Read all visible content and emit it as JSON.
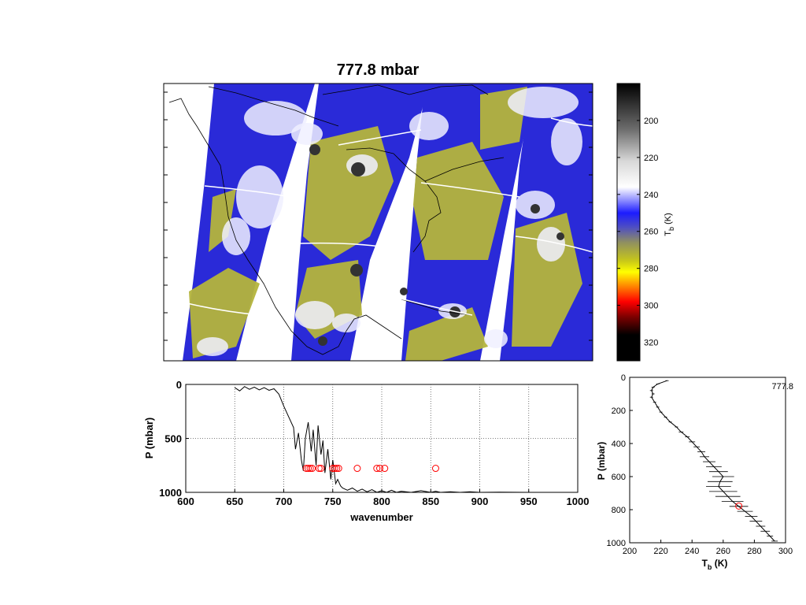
{
  "figure": {
    "title": "777.8 mbar"
  },
  "colorbar": {
    "label": "T",
    "label_sub": "b",
    "label_unit": " (K)",
    "ticks": [
      200,
      220,
      240,
      260,
      280,
      300,
      320
    ],
    "range": [
      180,
      330
    ],
    "stops": [
      {
        "v": 180,
        "c": "#000000"
      },
      {
        "v": 205,
        "c": "#6e6e6e"
      },
      {
        "v": 222,
        "c": "#d8d8d8"
      },
      {
        "v": 236,
        "c": "#ffffff"
      },
      {
        "v": 244,
        "c": "#8080ff"
      },
      {
        "v": 250,
        "c": "#1c1cff"
      },
      {
        "v": 258,
        "c": "#5050c0"
      },
      {
        "v": 266,
        "c": "#909060"
      },
      {
        "v": 276,
        "c": "#c8c818"
      },
      {
        "v": 282,
        "c": "#ffff00"
      },
      {
        "v": 290,
        "c": "#ff8000"
      },
      {
        "v": 298,
        "c": "#ff0000"
      },
      {
        "v": 306,
        "c": "#800000"
      },
      {
        "v": 316,
        "c": "#000000"
      },
      {
        "v": 330,
        "c": "#000000"
      }
    ]
  },
  "map": {
    "background": "#ffffff",
    "swath_color": "#b4b43c",
    "cold_color": "#2a2ad8",
    "cloud_color": "#f0f0ff",
    "coast_color": "#000000"
  },
  "chart_data": [
    {
      "type": "line",
      "id": "weighting-spectrum",
      "xlabel": "wavenumber",
      "ylabel": "P (mbar)",
      "xlim": [
        600,
        1000
      ],
      "ylim": [
        1000,
        0
      ],
      "xticks": [
        600,
        650,
        700,
        750,
        800,
        850,
        900,
        950,
        1000
      ],
      "yticks": [
        0,
        500,
        1000
      ],
      "grid": true,
      "series": [
        {
          "style": "black-line",
          "x": [
            650,
            655,
            660,
            665,
            670,
            675,
            680,
            685,
            690,
            695,
            700,
            705,
            710,
            712,
            715,
            718,
            720,
            722,
            725,
            728,
            730,
            733,
            735,
            738,
            740,
            742,
            745,
            748,
            750,
            753,
            755,
            758,
            760,
            765,
            770,
            775,
            780,
            785,
            790,
            795,
            800,
            805,
            810,
            815,
            820,
            830,
            840,
            850,
            855,
            860,
            870,
            880,
            890,
            900,
            920,
            950,
            1000
          ],
          "y": [
            30,
            60,
            20,
            45,
            25,
            50,
            30,
            55,
            40,
            90,
            200,
            300,
            400,
            600,
            450,
            700,
            800,
            500,
            350,
            620,
            420,
            750,
            380,
            650,
            520,
            820,
            600,
            880,
            700,
            920,
            880,
            940,
            960,
            980,
            960,
            990,
            970,
            995,
            975,
            1000,
            985,
            1000,
            980,
            1000,
            990,
            1000,
            985,
            1000,
            990,
            1000,
            995,
            1000,
            995,
            1000,
            998,
            1000,
            1000
          ]
        }
      ],
      "markers": {
        "color": "#ff0000",
        "shape": "open-circle",
        "y": 777.8,
        "x": [
          723,
          725,
          727,
          729,
          736,
          738,
          750,
          752,
          754,
          756,
          775,
          795,
          798,
          803,
          855
        ]
      }
    },
    {
      "type": "line",
      "id": "temperature-profile",
      "xlabel": "T",
      "xlabel_sub": "b",
      "xlabel_unit": " (K)",
      "ylabel": "P (mbar)",
      "xlim": [
        200,
        300
      ],
      "ylim": [
        1000,
        0
      ],
      "xticks": [
        200,
        220,
        240,
        260,
        280,
        300
      ],
      "yticks": [
        0,
        200,
        400,
        600,
        800,
        1000
      ],
      "grid": false,
      "annotation": "777.8",
      "series": [
        {
          "style": "black-line-errorbars",
          "p": [
            20,
            40,
            60,
            80,
            100,
            120,
            150,
            180,
            210,
            240,
            270,
            300,
            330,
            360,
            390,
            420,
            450,
            480,
            510,
            540,
            570,
            600,
            630,
            660,
            690,
            720,
            750,
            780,
            810,
            840,
            870,
            900,
            930,
            960,
            990
          ],
          "t": [
            224,
            218,
            215,
            214,
            215,
            214,
            216,
            218,
            220,
            223,
            226,
            230,
            233,
            237,
            240,
            243,
            246,
            248,
            251,
            254,
            257,
            260,
            258,
            257,
            260,
            263,
            266,
            270,
            274,
            278,
            281,
            284,
            287,
            290,
            293
          ],
          "err": [
            1,
            1,
            1,
            1,
            1,
            1,
            1,
            1,
            1,
            1,
            1,
            1,
            1.5,
            1.5,
            2,
            2,
            2.5,
            3,
            4,
            5,
            6,
            7,
            8,
            8,
            9,
            8,
            7,
            6,
            5,
            4,
            4,
            3,
            3,
            2,
            2
          ]
        }
      ],
      "markers": {
        "color": "#ff0000",
        "shape": "open-circle",
        "points": [
          {
            "t": 270,
            "p": 777.8
          }
        ]
      }
    }
  ]
}
